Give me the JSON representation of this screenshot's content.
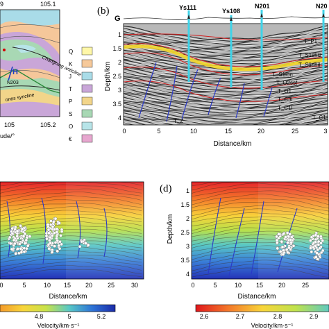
{
  "panel_a": {
    "top_ticks": [
      "9",
      "105.1"
    ],
    "bottom_ticks": [
      "105",
      "105.2"
    ],
    "xlabel_fragment": "ude/°",
    "map_labels": [
      "Changning anticline",
      "N203",
      "ones syncline"
    ],
    "marker_H": "H",
    "legend": [
      {
        "code": "Q",
        "color": "#fff7a8"
      },
      {
        "code": "K",
        "color": "#f6c99a"
      },
      {
        "code": "J",
        "color": "#a9dce8"
      },
      {
        "code": "T",
        "color": "#c9a6d8"
      },
      {
        "code": "P",
        "color": "#f2d58a"
      },
      {
        "code": "S",
        "color": "#a8d8b4"
      },
      {
        "code": "O",
        "color": "#b7e4e8"
      },
      {
        "code": "€",
        "color": "#e7a7cf"
      }
    ]
  },
  "panel_b": {
    "label": "(b)",
    "G_label": "G",
    "wells": [
      "Ys111",
      "Ys108",
      "N201",
      "N20"
    ],
    "ylabel": "Depth/km",
    "yticks": [
      "1",
      "1.5",
      "2",
      "2.5",
      "3",
      "3.5",
      "4"
    ],
    "xlabel": "Distance/km",
    "xticks": [
      "0",
      "5",
      "10",
      "15",
      "20",
      "25",
      "3"
    ],
    "horizons": [
      "T_P1",
      "T_S1shiz",
      "T_S1shil",
      "T_S1lon",
      "T_O2ssf",
      "T_O1",
      "T_C3l",
      "T_C1l",
      "T_Z",
      "T_C1"
    ]
  },
  "panel_c": {
    "xlabel": "Distance/km",
    "xticks": [
      "0",
      "5",
      "10",
      "15",
      "20",
      "25",
      "30"
    ],
    "colorbar_ticks": [
      "4.8",
      "5",
      "5.2"
    ],
    "colorbar_label": "Velocity/km·s⁻¹"
  },
  "panel_d": {
    "label": "(d)",
    "ylabel": "Depth/km",
    "yticks": [
      "1",
      "1.5",
      "2",
      "2.5",
      "3",
      "3.5",
      "4"
    ],
    "xlabel": "Distance/km",
    "xticks": [
      "0",
      "5",
      "10",
      "15",
      "20",
      "25"
    ],
    "colorbar_ticks": [
      "2.6",
      "2.7",
      "2.8",
      "2.9"
    ],
    "colorbar_label": "Velocity/km·s⁻¹"
  }
}
